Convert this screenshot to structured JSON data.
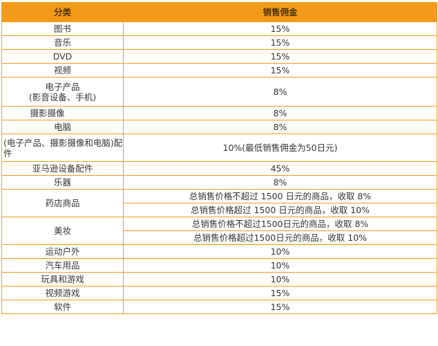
{
  "header": {
    "category": "分类",
    "commission": "销售佣金"
  },
  "rows": {
    "books": {
      "category": "图书",
      "commission": "15%"
    },
    "music": {
      "category": "音乐",
      "commission": "15%"
    },
    "dvd": {
      "category": "DVD",
      "commission": "15%"
    },
    "video": {
      "category": "视频",
      "commission": "15%"
    },
    "electronics": {
      "category": "电子产品",
      "category_note": "(影音设备、手机)",
      "commission": "8%"
    },
    "camera": {
      "category": "摄影摄像",
      "commission": "8%"
    },
    "computer": {
      "category": "电脑",
      "commission": "8%"
    },
    "accessories": {
      "category": "(电子产品、摄影摄像和电脑)配件",
      "commission": "10%(最低销售佣金为50日元)"
    },
    "amazon_acc": {
      "category": "亚马逊设备配件",
      "commission": "45%"
    },
    "instruments": {
      "category": "乐器",
      "commission": "8%"
    },
    "drugstore": {
      "category": "药店商品",
      "tier1": "总销售价格不超过 1500 日元的商品，收取 8%",
      "tier2": "总销售价格超过 1500 日元的商品，收取 10%"
    },
    "beauty": {
      "category": "美妆",
      "tier1": "总销售价格不超过1500日元的商品，收取 8%",
      "tier2": "总销售价格超过1500日元的商品，收取 10%"
    },
    "sports": {
      "category": "运动户外",
      "commission": "10%"
    },
    "auto": {
      "category": "汽车用品",
      "commission": "10%"
    },
    "toys": {
      "category": "玩具和游戏",
      "commission": "10%"
    },
    "videogames": {
      "category": "视频游戏",
      "commission": "15%"
    },
    "software": {
      "category": "软件",
      "commission": "15%"
    }
  },
  "colors": {
    "header_bg": "#f39a1b",
    "border": "#f39a1b",
    "text": "#333333"
  }
}
